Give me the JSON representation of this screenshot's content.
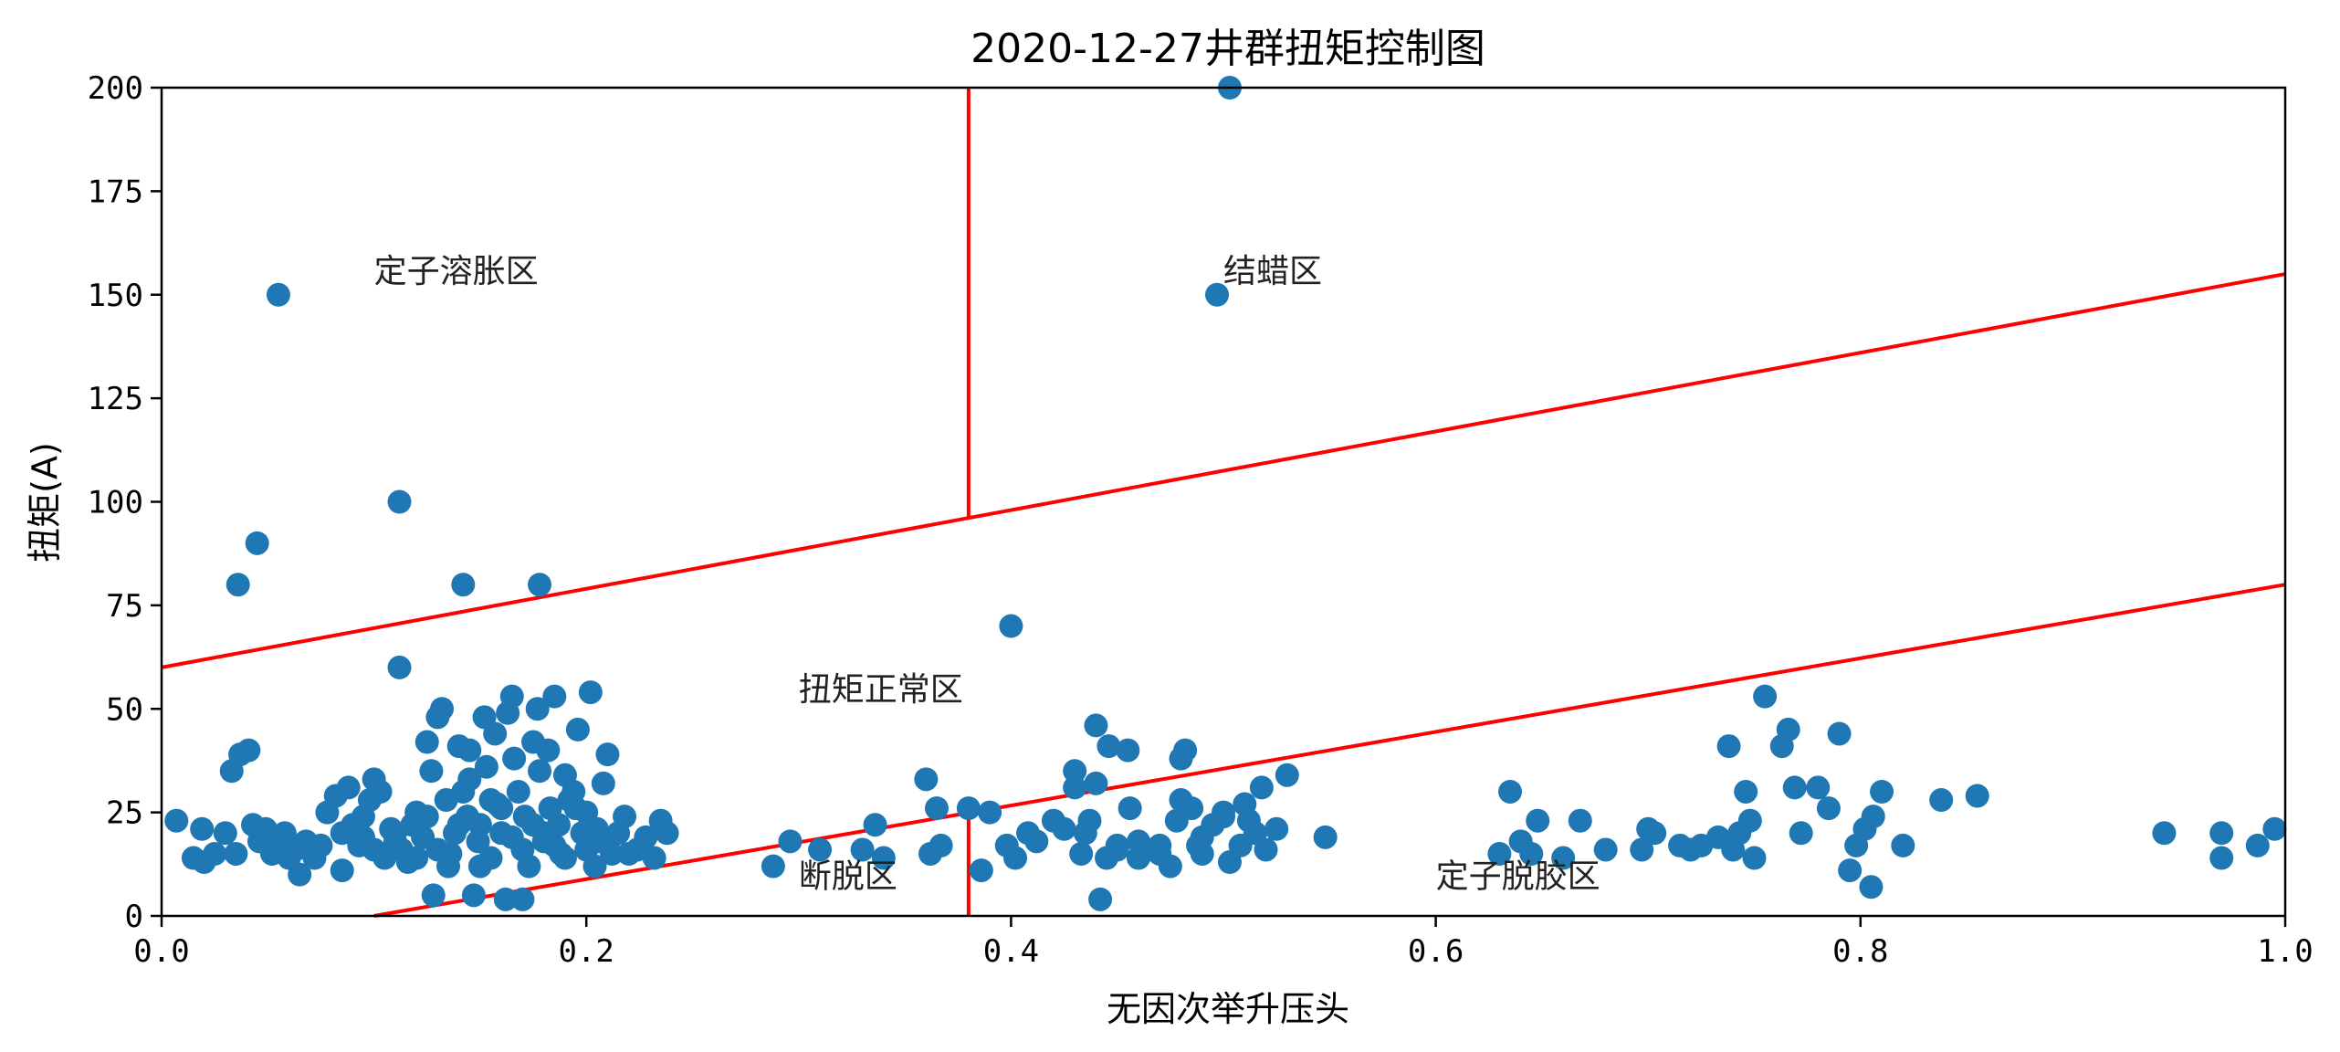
{
  "chart_data": {
    "type": "scatter",
    "title": "2020-12-27井群扭矩控制图",
    "xlabel": "无因次举升压头",
    "ylabel": "扭矩(A)",
    "xlim": [
      0,
      1
    ],
    "ylim": [
      0,
      200
    ],
    "x_ticks": [
      "0.0",
      "0.2",
      "0.4",
      "0.6",
      "0.8",
      "1.0"
    ],
    "y_ticks": [
      "0",
      "25",
      "50",
      "75",
      "100",
      "125",
      "150",
      "175",
      "200"
    ],
    "grid": false,
    "legend": "none",
    "colors": {
      "points": "#1f77b4",
      "boundaries": "#ff0000"
    },
    "boundary_lines": [
      {
        "x": [
          0.0,
          1.0
        ],
        "y": [
          60,
          155
        ]
      },
      {
        "x": [
          0.1,
          1.0
        ],
        "y": [
          0,
          80
        ]
      },
      {
        "x": [
          0.38,
          0.38
        ],
        "y": [
          96.1,
          200
        ]
      },
      {
        "x": [
          0.38,
          0.38
        ],
        "y": [
          0,
          25.3
        ]
      }
    ],
    "regions": [
      {
        "label": "定子溶胀区",
        "x": 0.1,
        "y": 153
      },
      {
        "label": "结蜡区",
        "x": 0.5,
        "y": 153
      },
      {
        "label": "扭矩正常区",
        "x": 0.3,
        "y": 52
      },
      {
        "label": "断脱区",
        "x": 0.3,
        "y": 7
      },
      {
        "label": "定子脱胶区",
        "x": 0.6,
        "y": 7
      }
    ],
    "points": [
      [
        0.055,
        150
      ],
      [
        0.112,
        100
      ],
      [
        0.045,
        90
      ],
      [
        0.036,
        80
      ],
      [
        0.142,
        80
      ],
      [
        0.178,
        80
      ],
      [
        0.112,
        60
      ],
      [
        0.4,
        70
      ],
      [
        0.497,
        150
      ],
      [
        0.503,
        200
      ],
      [
        0.007,
        23
      ],
      [
        0.015,
        14
      ],
      [
        0.02,
        13
      ],
      [
        0.025,
        15
      ],
      [
        0.03,
        20
      ],
      [
        0.019,
        21
      ],
      [
        0.035,
        15
      ],
      [
        0.033,
        35
      ],
      [
        0.037,
        39
      ],
      [
        0.041,
        40
      ],
      [
        0.043,
        22
      ],
      [
        0.046,
        18
      ],
      [
        0.049,
        21
      ],
      [
        0.052,
        15
      ],
      [
        0.055,
        17
      ],
      [
        0.058,
        20
      ],
      [
        0.06,
        14
      ],
      [
        0.063,
        16
      ],
      [
        0.065,
        10
      ],
      [
        0.068,
        18
      ],
      [
        0.072,
        14
      ],
      [
        0.075,
        17
      ],
      [
        0.078,
        25
      ],
      [
        0.082,
        29
      ],
      [
        0.085,
        11
      ],
      [
        0.088,
        31
      ],
      [
        0.09,
        22
      ],
      [
        0.093,
        17
      ],
      [
        0.095,
        19
      ],
      [
        0.098,
        28
      ],
      [
        0.1,
        33
      ],
      [
        0.103,
        30
      ],
      [
        0.105,
        14
      ],
      [
        0.108,
        21
      ],
      [
        0.11,
        18
      ],
      [
        0.113,
        16
      ],
      [
        0.116,
        13
      ],
      [
        0.118,
        22
      ],
      [
        0.12,
        25
      ],
      [
        0.123,
        19
      ],
      [
        0.125,
        42
      ],
      [
        0.127,
        35
      ],
      [
        0.128,
        5
      ],
      [
        0.13,
        48
      ],
      [
        0.132,
        50
      ],
      [
        0.134,
        28
      ],
      [
        0.136,
        15
      ],
      [
        0.138,
        20
      ],
      [
        0.14,
        41
      ],
      [
        0.142,
        30
      ],
      [
        0.144,
        24
      ],
      [
        0.145,
        40
      ],
      [
        0.147,
        5
      ],
      [
        0.149,
        18
      ],
      [
        0.15,
        22
      ],
      [
        0.152,
        48
      ],
      [
        0.153,
        36
      ],
      [
        0.155,
        14
      ],
      [
        0.157,
        44
      ],
      [
        0.158,
        27
      ],
      [
        0.16,
        20
      ],
      [
        0.162,
        4
      ],
      [
        0.163,
        49
      ],
      [
        0.165,
        53
      ],
      [
        0.166,
        38
      ],
      [
        0.168,
        30
      ],
      [
        0.17,
        4
      ],
      [
        0.171,
        24
      ],
      [
        0.173,
        12
      ],
      [
        0.175,
        42
      ],
      [
        0.177,
        50
      ],
      [
        0.178,
        35
      ],
      [
        0.18,
        18
      ],
      [
        0.182,
        40
      ],
      [
        0.183,
        26
      ],
      [
        0.185,
        53
      ],
      [
        0.187,
        22
      ],
      [
        0.188,
        15
      ],
      [
        0.19,
        34
      ],
      [
        0.192,
        28
      ],
      [
        0.194,
        30
      ],
      [
        0.196,
        45
      ],
      [
        0.198,
        20
      ],
      [
        0.2,
        25
      ],
      [
        0.202,
        54
      ],
      [
        0.204,
        12
      ],
      [
        0.206,
        18
      ],
      [
        0.208,
        32
      ],
      [
        0.21,
        39
      ],
      [
        0.212,
        15
      ],
      [
        0.215,
        20
      ],
      [
        0.218,
        24
      ],
      [
        0.22,
        15
      ],
      [
        0.224,
        16
      ],
      [
        0.228,
        19
      ],
      [
        0.232,
        14
      ],
      [
        0.235,
        23
      ],
      [
        0.238,
        20
      ],
      [
        0.13,
        16
      ],
      [
        0.14,
        22
      ],
      [
        0.15,
        12
      ],
      [
        0.16,
        26
      ],
      [
        0.17,
        16
      ],
      [
        0.18,
        20
      ],
      [
        0.19,
        14
      ],
      [
        0.2,
        16
      ],
      [
        0.12,
        14
      ],
      [
        0.11,
        20
      ],
      [
        0.1,
        16
      ],
      [
        0.135,
        12
      ],
      [
        0.155,
        28
      ],
      [
        0.175,
        22
      ],
      [
        0.195,
        26
      ],
      [
        0.145,
        33
      ],
      [
        0.165,
        19
      ],
      [
        0.185,
        17
      ],
      [
        0.205,
        21
      ],
      [
        0.125,
        24
      ],
      [
        0.095,
        24
      ],
      [
        0.085,
        20
      ],
      [
        0.288,
        12
      ],
      [
        0.296,
        18
      ],
      [
        0.31,
        16
      ],
      [
        0.33,
        16
      ],
      [
        0.336,
        22
      ],
      [
        0.34,
        14
      ],
      [
        0.36,
        33
      ],
      [
        0.362,
        15
      ],
      [
        0.365,
        26
      ],
      [
        0.367,
        17
      ],
      [
        0.38,
        26
      ],
      [
        0.386,
        11
      ],
      [
        0.39,
        25
      ],
      [
        0.398,
        17
      ],
      [
        0.402,
        14
      ],
      [
        0.408,
        20
      ],
      [
        0.412,
        18
      ],
      [
        0.42,
        23
      ],
      [
        0.425,
        21
      ],
      [
        0.43,
        35
      ],
      [
        0.433,
        15
      ],
      [
        0.437,
        23
      ],
      [
        0.44,
        46
      ],
      [
        0.442,
        4
      ],
      [
        0.445,
        14
      ],
      [
        0.446,
        41
      ],
      [
        0.45,
        17
      ],
      [
        0.455,
        40
      ],
      [
        0.456,
        26
      ],
      [
        0.46,
        14
      ],
      [
        0.465,
        16
      ],
      [
        0.47,
        15
      ],
      [
        0.475,
        12
      ],
      [
        0.478,
        23
      ],
      [
        0.48,
        38
      ],
      [
        0.482,
        40
      ],
      [
        0.485,
        26
      ],
      [
        0.488,
        17
      ],
      [
        0.49,
        15
      ],
      [
        0.495,
        22
      ],
      [
        0.5,
        25
      ],
      [
        0.503,
        13
      ],
      [
        0.508,
        17
      ],
      [
        0.51,
        27
      ],
      [
        0.515,
        20
      ],
      [
        0.518,
        31
      ],
      [
        0.52,
        16
      ],
      [
        0.525,
        21
      ],
      [
        0.53,
        34
      ],
      [
        0.548,
        19
      ],
      [
        0.43,
        31
      ],
      [
        0.435,
        20
      ],
      [
        0.44,
        32
      ],
      [
        0.45,
        16
      ],
      [
        0.46,
        18
      ],
      [
        0.47,
        17
      ],
      [
        0.48,
        28
      ],
      [
        0.49,
        19
      ],
      [
        0.5,
        24
      ],
      [
        0.512,
        23
      ],
      [
        0.63,
        15
      ],
      [
        0.635,
        30
      ],
      [
        0.64,
        18
      ],
      [
        0.645,
        15
      ],
      [
        0.648,
        23
      ],
      [
        0.66,
        14
      ],
      [
        0.668,
        23
      ],
      [
        0.68,
        16
      ],
      [
        0.697,
        16
      ],
      [
        0.7,
        21
      ],
      [
        0.703,
        20
      ],
      [
        0.715,
        17
      ],
      [
        0.72,
        16
      ],
      [
        0.725,
        17
      ],
      [
        0.733,
        19
      ],
      [
        0.738,
        41
      ],
      [
        0.74,
        16
      ],
      [
        0.743,
        20
      ],
      [
        0.746,
        30
      ],
      [
        0.748,
        23
      ],
      [
        0.75,
        14
      ],
      [
        0.755,
        53
      ],
      [
        0.763,
        41
      ],
      [
        0.766,
        45
      ],
      [
        0.769,
        31
      ],
      [
        0.772,
        20
      ],
      [
        0.78,
        31
      ],
      [
        0.785,
        26
      ],
      [
        0.79,
        44
      ],
      [
        0.795,
        11
      ],
      [
        0.798,
        17
      ],
      [
        0.802,
        21
      ],
      [
        0.806,
        24
      ],
      [
        0.81,
        30
      ],
      [
        0.805,
        7
      ],
      [
        0.82,
        17
      ],
      [
        0.838,
        28
      ],
      [
        0.855,
        29
      ],
      [
        0.943,
        20
      ],
      [
        0.97,
        20
      ],
      [
        0.97,
        14
      ],
      [
        0.987,
        17
      ],
      [
        0.995,
        21
      ]
    ]
  }
}
